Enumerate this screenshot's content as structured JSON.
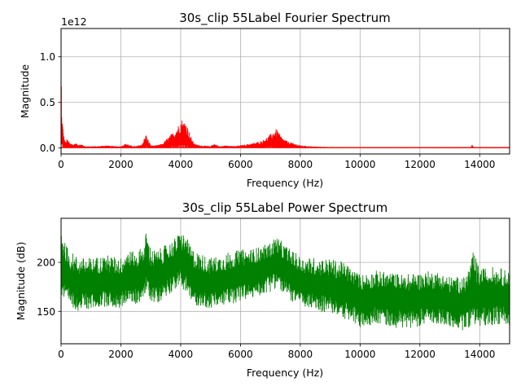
{
  "chart_data": [
    {
      "type": "area",
      "title": "30s_clip  55Label Fourier Spectrum",
      "xlabel": "Frequency (Hz)",
      "ylabel": "Magnitude",
      "offset_label": "1e12",
      "xlim": [
        0,
        15000
      ],
      "ylim": [
        -0.065,
        1.31
      ],
      "xticks": [
        0,
        2000,
        4000,
        6000,
        8000,
        10000,
        12000,
        14000
      ],
      "yticks": [
        0.0,
        0.5,
        1.0
      ],
      "ytick_labels": [
        "0.0",
        "0.5",
        "1.0"
      ],
      "grid": true,
      "color": "#ff0000",
      "series": [
        {
          "x": [
            0,
            20,
            60,
            100,
            150,
            200,
            300,
            400,
            500,
            600,
            700,
            800,
            1000,
            1200,
            1500,
            1800,
            2000,
            2100,
            2200,
            2300,
            2500,
            2700,
            2800,
            2850,
            2900,
            3000,
            3200,
            3400,
            3500,
            3600,
            3700,
            3800,
            3900,
            4000,
            4050,
            4100,
            4150,
            4200,
            4250,
            4300,
            4400,
            4500,
            4700,
            5000,
            5100,
            5300,
            5600,
            5800,
            6000,
            6200,
            6500,
            6700,
            6900,
            7000,
            7100,
            7200,
            7250,
            7300,
            7400,
            7600,
            7800,
            8000,
            8300,
            8600,
            9000,
            9500,
            10000,
            11000,
            12000,
            13000,
            13700,
            13750,
            13800,
            14000,
            15000
          ],
          "y": [
            1.28,
            0.4,
            0.24,
            0.12,
            0.06,
            0.1,
            0.06,
            0.04,
            0.05,
            0.04,
            0.04,
            0.02,
            0.02,
            0.02,
            0.03,
            0.02,
            0.02,
            0.04,
            0.05,
            0.03,
            0.02,
            0.04,
            0.12,
            0.15,
            0.1,
            0.03,
            0.03,
            0.05,
            0.09,
            0.12,
            0.16,
            0.18,
            0.24,
            0.3,
            0.32,
            0.28,
            0.31,
            0.26,
            0.22,
            0.16,
            0.08,
            0.04,
            0.03,
            0.02,
            0.05,
            0.02,
            0.03,
            0.02,
            0.03,
            0.04,
            0.06,
            0.08,
            0.12,
            0.15,
            0.18,
            0.21,
            0.19,
            0.16,
            0.11,
            0.07,
            0.05,
            0.03,
            0.02,
            0.015,
            0.012,
            0.01,
            0.008,
            0.006,
            0.005,
            0.005,
            0.004,
            0.04,
            0.005,
            0.004,
            0.003
          ]
        }
      ]
    },
    {
      "type": "area",
      "title": "30s_clip  55Label Power Spectrum",
      "xlabel": "Frequency (Hz)",
      "ylabel": "Magnitude (dB)",
      "xlim": [
        0,
        15000
      ],
      "ylim": [
        117,
        245
      ],
      "xticks": [
        0,
        2000,
        4000,
        6000,
        8000,
        10000,
        12000,
        14000
      ],
      "yticks": [
        150,
        200
      ],
      "ytick_labels": [
        "150",
        "200"
      ],
      "grid": true,
      "color": "#008000",
      "series": [
        {
          "x": [
            0,
            100,
            300,
            600,
            1000,
            1500,
            2000,
            2200,
            2500,
            2800,
            2850,
            3000,
            3200,
            3500,
            3800,
            4000,
            4100,
            4200,
            4300,
            4500,
            5000,
            5500,
            6000,
            6500,
            7000,
            7200,
            7300,
            7500,
            8000,
            8500,
            9000,
            9500,
            10000,
            10500,
            11000,
            11500,
            12000,
            12500,
            13000,
            13500,
            13800,
            14000,
            14200,
            14500,
            15000
          ],
          "upper": [
            244,
            222,
            212,
            205,
            205,
            208,
            205,
            214,
            210,
            220,
            235,
            215,
            212,
            218,
            225,
            232,
            230,
            226,
            218,
            212,
            205,
            210,
            213,
            215,
            220,
            228,
            224,
            218,
            206,
            205,
            204,
            200,
            188,
            192,
            190,
            188,
            190,
            192,
            186,
            185,
            212,
            193,
            195,
            196,
            192
          ],
          "center": [
            205,
            190,
            182,
            178,
            178,
            180,
            178,
            185,
            182,
            190,
            196,
            186,
            185,
            190,
            198,
            202,
            200,
            196,
            188,
            182,
            178,
            182,
            186,
            190,
            196,
            200,
            197,
            190,
            180,
            177,
            175,
            170,
            162,
            164,
            163,
            161,
            162,
            163,
            160,
            158,
            166,
            165,
            167,
            168,
            164
          ],
          "lower": [
            165,
            158,
            155,
            150,
            152,
            155,
            152,
            160,
            156,
            165,
            170,
            160,
            158,
            165,
            172,
            175,
            172,
            168,
            160,
            156,
            152,
            156,
            160,
            164,
            170,
            174,
            172,
            164,
            155,
            150,
            148,
            142,
            132,
            138,
            134,
            132,
            135,
            138,
            133,
            130,
            138,
            132,
            135,
            136,
            136
          ]
        }
      ]
    }
  ]
}
